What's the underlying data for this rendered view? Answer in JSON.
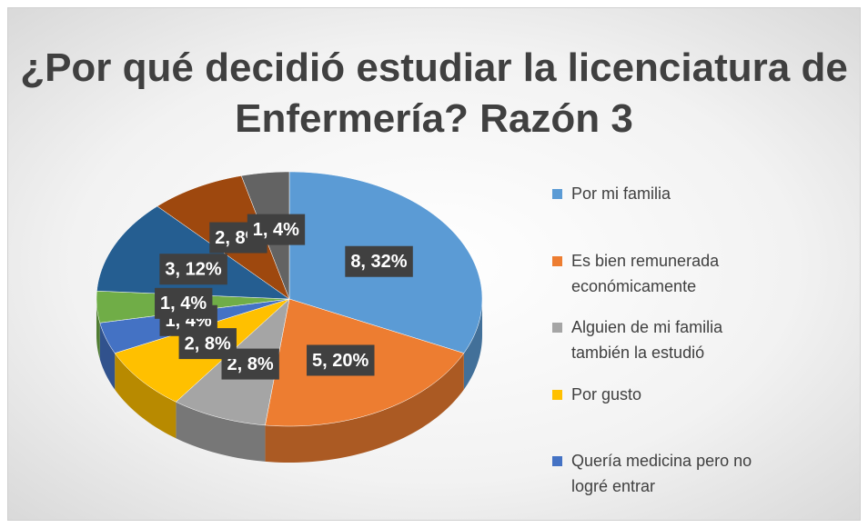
{
  "chart_data": {
    "type": "pie3d",
    "title": "¿Por qué decidió estudiar la licenciatura de Enfermería? Razón 3",
    "categories": [
      "Por mi familia",
      "Es bien remunerada económicamente",
      "Alguien de mi familia también la estudió",
      "Por gusto",
      "Quería medicina pero no logré entrar",
      null,
      null,
      null,
      null
    ],
    "values": [
      8,
      5,
      2,
      2,
      1,
      1,
      3,
      2,
      1
    ],
    "value_labels": [
      "8, 32%",
      "5, 20%",
      "2, 8%",
      "2, 8%",
      "1, 4%",
      "1, 4%",
      "3, 12%",
      "2, 8%",
      "1, 4%"
    ],
    "colors": [
      "#5b9bd5",
      "#ed7d31",
      "#a5a5a5",
      "#ffc000",
      "#4472c4",
      "#70ad47",
      "#255e91",
      "#9e480e",
      "#636363"
    ],
    "legend": "right"
  }
}
